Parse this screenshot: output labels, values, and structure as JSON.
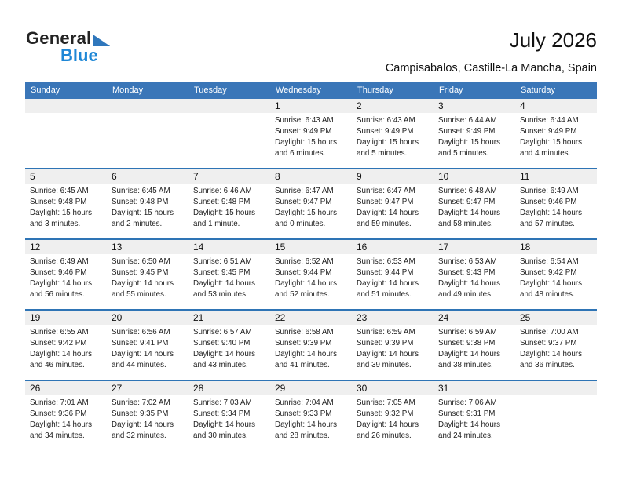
{
  "logo": {
    "line1": "General",
    "line2": "Blue"
  },
  "header": {
    "title": "July 2026",
    "subtitle": "Campisabalos, Castille-La Mancha, Spain"
  },
  "weekday_headers": [
    "Sunday",
    "Monday",
    "Tuesday",
    "Wednesday",
    "Thursday",
    "Friday",
    "Saturday"
  ],
  "weeks": [
    [
      {
        "day": "",
        "sunrise": "",
        "sunset": "",
        "daylight": ""
      },
      {
        "day": "",
        "sunrise": "",
        "sunset": "",
        "daylight": ""
      },
      {
        "day": "",
        "sunrise": "",
        "sunset": "",
        "daylight": ""
      },
      {
        "day": "1",
        "sunrise": "Sunrise: 6:43 AM",
        "sunset": "Sunset: 9:49 PM",
        "daylight": "Daylight: 15 hours and 6 minutes."
      },
      {
        "day": "2",
        "sunrise": "Sunrise: 6:43 AM",
        "sunset": "Sunset: 9:49 PM",
        "daylight": "Daylight: 15 hours and 5 minutes."
      },
      {
        "day": "3",
        "sunrise": "Sunrise: 6:44 AM",
        "sunset": "Sunset: 9:49 PM",
        "daylight": "Daylight: 15 hours and 5 minutes."
      },
      {
        "day": "4",
        "sunrise": "Sunrise: 6:44 AM",
        "sunset": "Sunset: 9:49 PM",
        "daylight": "Daylight: 15 hours and 4 minutes."
      }
    ],
    [
      {
        "day": "5",
        "sunrise": "Sunrise: 6:45 AM",
        "sunset": "Sunset: 9:48 PM",
        "daylight": "Daylight: 15 hours and 3 minutes."
      },
      {
        "day": "6",
        "sunrise": "Sunrise: 6:45 AM",
        "sunset": "Sunset: 9:48 PM",
        "daylight": "Daylight: 15 hours and 2 minutes."
      },
      {
        "day": "7",
        "sunrise": "Sunrise: 6:46 AM",
        "sunset": "Sunset: 9:48 PM",
        "daylight": "Daylight: 15 hours and 1 minute."
      },
      {
        "day": "8",
        "sunrise": "Sunrise: 6:47 AM",
        "sunset": "Sunset: 9:47 PM",
        "daylight": "Daylight: 15 hours and 0 minutes."
      },
      {
        "day": "9",
        "sunrise": "Sunrise: 6:47 AM",
        "sunset": "Sunset: 9:47 PM",
        "daylight": "Daylight: 14 hours and 59 minutes."
      },
      {
        "day": "10",
        "sunrise": "Sunrise: 6:48 AM",
        "sunset": "Sunset: 9:47 PM",
        "daylight": "Daylight: 14 hours and 58 minutes."
      },
      {
        "day": "11",
        "sunrise": "Sunrise: 6:49 AM",
        "sunset": "Sunset: 9:46 PM",
        "daylight": "Daylight: 14 hours and 57 minutes."
      }
    ],
    [
      {
        "day": "12",
        "sunrise": "Sunrise: 6:49 AM",
        "sunset": "Sunset: 9:46 PM",
        "daylight": "Daylight: 14 hours and 56 minutes."
      },
      {
        "day": "13",
        "sunrise": "Sunrise: 6:50 AM",
        "sunset": "Sunset: 9:45 PM",
        "daylight": "Daylight: 14 hours and 55 minutes."
      },
      {
        "day": "14",
        "sunrise": "Sunrise: 6:51 AM",
        "sunset": "Sunset: 9:45 PM",
        "daylight": "Daylight: 14 hours and 53 minutes."
      },
      {
        "day": "15",
        "sunrise": "Sunrise: 6:52 AM",
        "sunset": "Sunset: 9:44 PM",
        "daylight": "Daylight: 14 hours and 52 minutes."
      },
      {
        "day": "16",
        "sunrise": "Sunrise: 6:53 AM",
        "sunset": "Sunset: 9:44 PM",
        "daylight": "Daylight: 14 hours and 51 minutes."
      },
      {
        "day": "17",
        "sunrise": "Sunrise: 6:53 AM",
        "sunset": "Sunset: 9:43 PM",
        "daylight": "Daylight: 14 hours and 49 minutes."
      },
      {
        "day": "18",
        "sunrise": "Sunrise: 6:54 AM",
        "sunset": "Sunset: 9:42 PM",
        "daylight": "Daylight: 14 hours and 48 minutes."
      }
    ],
    [
      {
        "day": "19",
        "sunrise": "Sunrise: 6:55 AM",
        "sunset": "Sunset: 9:42 PM",
        "daylight": "Daylight: 14 hours and 46 minutes."
      },
      {
        "day": "20",
        "sunrise": "Sunrise: 6:56 AM",
        "sunset": "Sunset: 9:41 PM",
        "daylight": "Daylight: 14 hours and 44 minutes."
      },
      {
        "day": "21",
        "sunrise": "Sunrise: 6:57 AM",
        "sunset": "Sunset: 9:40 PM",
        "daylight": "Daylight: 14 hours and 43 minutes."
      },
      {
        "day": "22",
        "sunrise": "Sunrise: 6:58 AM",
        "sunset": "Sunset: 9:39 PM",
        "daylight": "Daylight: 14 hours and 41 minutes."
      },
      {
        "day": "23",
        "sunrise": "Sunrise: 6:59 AM",
        "sunset": "Sunset: 9:39 PM",
        "daylight": "Daylight: 14 hours and 39 minutes."
      },
      {
        "day": "24",
        "sunrise": "Sunrise: 6:59 AM",
        "sunset": "Sunset: 9:38 PM",
        "daylight": "Daylight: 14 hours and 38 minutes."
      },
      {
        "day": "25",
        "sunrise": "Sunrise: 7:00 AM",
        "sunset": "Sunset: 9:37 PM",
        "daylight": "Daylight: 14 hours and 36 minutes."
      }
    ],
    [
      {
        "day": "26",
        "sunrise": "Sunrise: 7:01 AM",
        "sunset": "Sunset: 9:36 PM",
        "daylight": "Daylight: 14 hours and 34 minutes."
      },
      {
        "day": "27",
        "sunrise": "Sunrise: 7:02 AM",
        "sunset": "Sunset: 9:35 PM",
        "daylight": "Daylight: 14 hours and 32 minutes."
      },
      {
        "day": "28",
        "sunrise": "Sunrise: 7:03 AM",
        "sunset": "Sunset: 9:34 PM",
        "daylight": "Daylight: 14 hours and 30 minutes."
      },
      {
        "day": "29",
        "sunrise": "Sunrise: 7:04 AM",
        "sunset": "Sunset: 9:33 PM",
        "daylight": "Daylight: 14 hours and 28 minutes."
      },
      {
        "day": "30",
        "sunrise": "Sunrise: 7:05 AM",
        "sunset": "Sunset: 9:32 PM",
        "daylight": "Daylight: 14 hours and 26 minutes."
      },
      {
        "day": "31",
        "sunrise": "Sunrise: 7:06 AM",
        "sunset": "Sunset: 9:31 PM",
        "daylight": "Daylight: 14 hours and 24 minutes."
      },
      {
        "day": "",
        "sunrise": "",
        "sunset": "",
        "daylight": ""
      }
    ]
  ],
  "colors": {
    "header_bg": "#3a76b8",
    "row_divider": "#2e74b5",
    "day_band_bg": "#efefef",
    "logo_blue": "#1e87d6",
    "logo_triangle": "#2f77bc"
  }
}
